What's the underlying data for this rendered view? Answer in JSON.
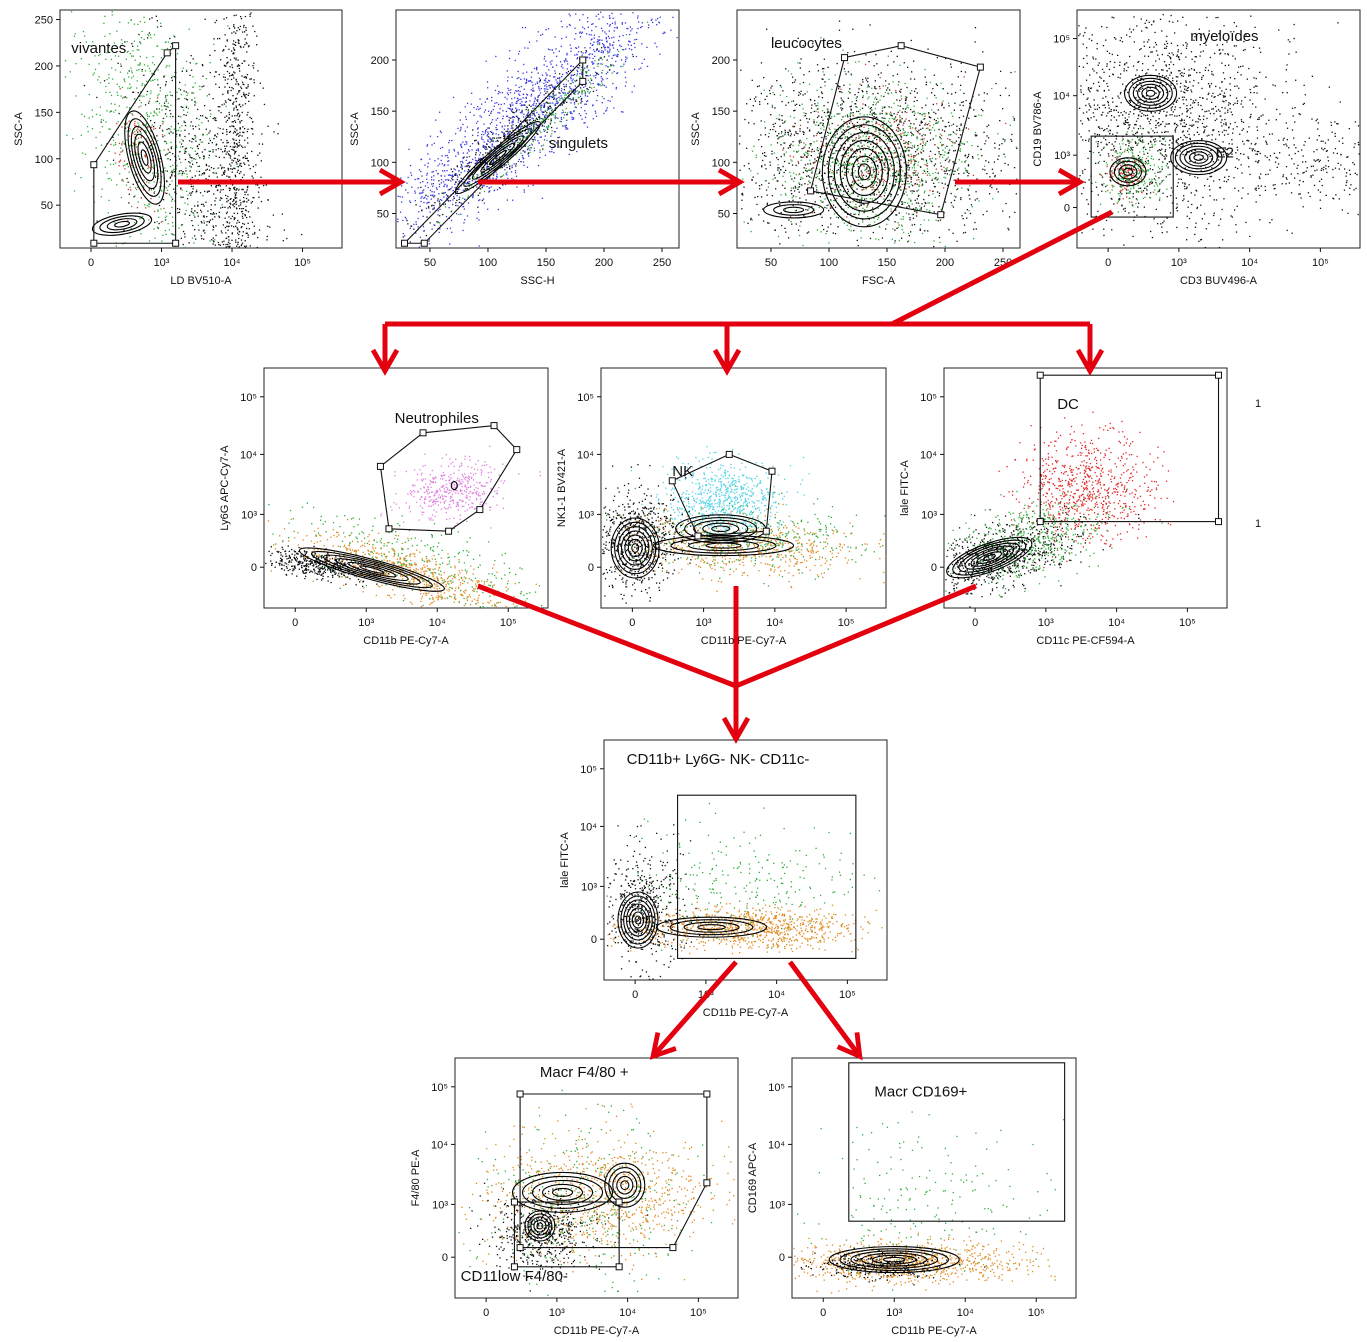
{
  "colors": {
    "arrow": "#e3000f",
    "gate": "#111111",
    "background": "#ffffff"
  },
  "panels": [
    {
      "id": "vivantes",
      "gate_label": "vivantes",
      "xlabel": "LD BV510-A",
      "ylabel": "SSC-A",
      "xticks": [
        "0",
        "10³",
        "10⁴",
        "10⁵"
      ],
      "yticks": [
        "250",
        "200",
        "150",
        "100",
        "50"
      ],
      "dot_colors": [
        "#111111",
        "#2fae3a",
        "#d33b2f"
      ]
    },
    {
      "id": "singulets",
      "gate_label": "singulets",
      "xlabel": "SSC-H",
      "ylabel": "SSC-A",
      "xticks": [
        "50",
        "100",
        "150",
        "200",
        "250"
      ],
      "yticks": [
        "200",
        "150",
        "100",
        "50"
      ],
      "dot_colors": [
        "#3a3ae0",
        "#111111",
        "#2fae3a",
        "#d33b2f"
      ]
    },
    {
      "id": "leucocytes",
      "gate_label": "leucocytes",
      "xlabel": "FSC-A",
      "ylabel": "SSC-A",
      "xticks": [
        "50",
        "100",
        "150",
        "200",
        "250"
      ],
      "yticks": [
        "200",
        "150",
        "100",
        "50"
      ],
      "dot_colors": [
        "#111111",
        "#2fae3a",
        "#d33b2f"
      ]
    },
    {
      "id": "myeloides",
      "gate_label": "myeloïdes",
      "gate_label_2": "E2",
      "xlabel": "CD3 BUV496-A",
      "ylabel": "CD19 BV786-A",
      "xticks": [
        "0",
        "10³",
        "10⁴",
        "10⁵"
      ],
      "yticks": [
        "10⁵",
        "10⁴",
        "10³",
        "0"
      ],
      "dot_colors": [
        "#111111",
        "#2fae3a",
        "#d33b2f"
      ]
    },
    {
      "id": "neutrophiles",
      "gate_label": "Neutrophiles",
      "xlabel": "CD11b PE-Cy7-A",
      "ylabel": "Ly6G APC-Cy7-A",
      "xticks": [
        "0",
        "10³",
        "10⁴",
        "10⁵"
      ],
      "yticks": [
        "10⁵",
        "10⁴",
        "10³",
        "0"
      ],
      "dot_colors": [
        "#e080e0",
        "#111111",
        "#e08a1e",
        "#2fae3a"
      ]
    },
    {
      "id": "nk",
      "gate_label": "NK",
      "xlabel": "CD11b PE-Cy7-A",
      "ylabel": "NK1-1 BV421-A",
      "xticks": [
        "0",
        "10³",
        "10⁴",
        "10⁵"
      ],
      "yticks": [
        "10⁵",
        "10⁴",
        "10³",
        "0"
      ],
      "dot_colors": [
        "#4fd3e6",
        "#111111",
        "#e08a1e",
        "#2fae3a"
      ]
    },
    {
      "id": "dc",
      "gate_label": "DC",
      "xlabel": "CD11c PE-CF594-A",
      "ylabel": "lale FITC-A",
      "xticks": [
        "0",
        "10³",
        "10⁴",
        "10⁵"
      ],
      "yticks": [
        "10⁵",
        "10⁴",
        "10³",
        "0"
      ],
      "dot_colors": [
        "#e02a2a",
        "#111111",
        "#2fae3a"
      ]
    },
    {
      "id": "cd11b",
      "gate_label": "CD11b+ Ly6G- NK- CD11c-",
      "xlabel": "CD11b PE-Cy7-A",
      "ylabel": "lale FITC-A",
      "xticks": [
        "0",
        "10³",
        "10⁴",
        "10⁵"
      ],
      "yticks": [
        "10⁵",
        "10⁴",
        "10³",
        "0"
      ],
      "dot_colors": [
        "#e08a1e",
        "#111111",
        "#2fae3a"
      ]
    },
    {
      "id": "f480",
      "gate_label": "Macr F4/80 +",
      "gate_label_2": "CD11low F4/80-",
      "xlabel": "CD11b PE-Cy7-A",
      "ylabel": "F4/80 PE-A",
      "xticks": [
        "0",
        "10³",
        "10⁴",
        "10⁵"
      ],
      "yticks": [
        "10⁵",
        "10⁴",
        "10³",
        "0"
      ],
      "dot_colors": [
        "#e08a1e",
        "#111111",
        "#2fae3a"
      ]
    },
    {
      "id": "cd169",
      "gate_label": "Macr CD169+",
      "xlabel": "CD11b PE-Cy7-A",
      "ylabel": "CD169 APC-A",
      "xticks": [
        "0",
        "10³",
        "10⁴",
        "10⁵"
      ],
      "yticks": [
        "10⁵",
        "10⁴",
        "10³",
        "0"
      ],
      "dot_colors": [
        "#e08a1e",
        "#111111",
        "#2fae3a"
      ]
    }
  ],
  "side_marks": [
    "1",
    "1"
  ]
}
